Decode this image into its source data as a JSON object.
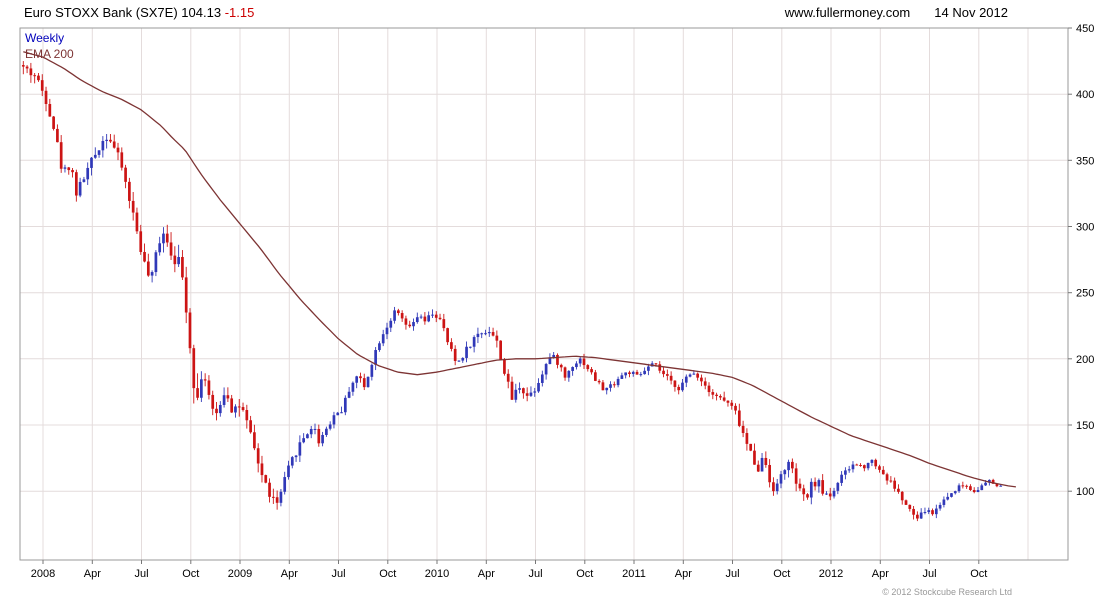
{
  "header": {
    "title": "Euro STOXX Bank (SX7E)",
    "price": "104.13",
    "change": "-1.15",
    "site": "www.fullermoney.com",
    "date": "14 Nov 2012"
  },
  "legend": {
    "timeframe": "Weekly",
    "indicator": "EMA 200"
  },
  "footer": {
    "copyright": "© 2012 Stockcube Research Ltd"
  },
  "colors": {
    "up": "#3038b8",
    "down": "#cc1414",
    "ema": "#7d3434",
    "grid": "#e4dcdc",
    "axis_border": "#9a9a9a",
    "tick": "#777777",
    "text": "#000000",
    "negative": "#cc0000",
    "weekly": "#0000bb",
    "copyright": "#999999"
  },
  "chart_data": {
    "type": "candlestick",
    "title": "Euro STOXX Bank (SX7E)",
    "timeframe": "Weekly",
    "overlay": "EMA 200",
    "last_close": 104.13,
    "change": -1.15,
    "x_range": [
      2007.9,
      2013.2
    ],
    "y_range": [
      48,
      450
    ],
    "y_ticks": [
      450,
      400,
      350,
      300,
      250,
      200,
      150,
      100
    ],
    "x_ticks": [
      {
        "t": 2008.0,
        "label": "2008"
      },
      {
        "t": 2008.25,
        "label": "Apr"
      },
      {
        "t": 2008.5,
        "label": "Jul"
      },
      {
        "t": 2008.75,
        "label": "Oct"
      },
      {
        "t": 2009.0,
        "label": "2009"
      },
      {
        "t": 2009.25,
        "label": "Apr"
      },
      {
        "t": 2009.5,
        "label": "Jul"
      },
      {
        "t": 2009.75,
        "label": "Oct"
      },
      {
        "t": 2010.0,
        "label": "2010"
      },
      {
        "t": 2010.25,
        "label": "Apr"
      },
      {
        "t": 2010.5,
        "label": "Jul"
      },
      {
        "t": 2010.75,
        "label": "Oct"
      },
      {
        "t": 2011.0,
        "label": "2011"
      },
      {
        "t": 2011.25,
        "label": "Apr"
      },
      {
        "t": 2011.5,
        "label": "Jul"
      },
      {
        "t": 2011.75,
        "label": "Oct"
      },
      {
        "t": 2012.0,
        "label": "2012"
      },
      {
        "t": 2012.25,
        "label": "Apr"
      },
      {
        "t": 2012.5,
        "label": "Jul"
      },
      {
        "t": 2012.75,
        "label": "Oct"
      }
    ],
    "price_anchors": [
      [
        2007.9,
        420
      ],
      [
        2007.96,
        414
      ],
      [
        2008.02,
        395
      ],
      [
        2008.06,
        372
      ],
      [
        2008.1,
        340
      ],
      [
        2008.14,
        348
      ],
      [
        2008.17,
        325
      ],
      [
        2008.21,
        338
      ],
      [
        2008.25,
        350
      ],
      [
        2008.29,
        362
      ],
      [
        2008.33,
        370
      ],
      [
        2008.36,
        360
      ],
      [
        2008.4,
        345
      ],
      [
        2008.44,
        320
      ],
      [
        2008.48,
        295
      ],
      [
        2008.52,
        268
      ],
      [
        2008.55,
        258
      ],
      [
        2008.58,
        285
      ],
      [
        2008.61,
        298
      ],
      [
        2008.65,
        282
      ],
      [
        2008.69,
        272
      ],
      [
        2008.72,
        252
      ],
      [
        2008.75,
        205
      ],
      [
        2008.78,
        165
      ],
      [
        2008.81,
        195
      ],
      [
        2008.84,
        172
      ],
      [
        2008.87,
        152
      ],
      [
        2008.9,
        168
      ],
      [
        2008.93,
        178
      ],
      [
        2008.96,
        162
      ],
      [
        2009.0,
        165
      ],
      [
        2009.04,
        148
      ],
      [
        2009.08,
        128
      ],
      [
        2009.12,
        108
      ],
      [
        2009.16,
        95
      ],
      [
        2009.19,
        90
      ],
      [
        2009.22,
        105
      ],
      [
        2009.25,
        118
      ],
      [
        2009.29,
        132
      ],
      [
        2009.33,
        142
      ],
      [
        2009.37,
        150
      ],
      [
        2009.4,
        138
      ],
      [
        2009.44,
        148
      ],
      [
        2009.48,
        158
      ],
      [
        2009.52,
        162
      ],
      [
        2009.56,
        180
      ],
      [
        2009.6,
        188
      ],
      [
        2009.63,
        178
      ],
      [
        2009.67,
        198
      ],
      [
        2009.71,
        215
      ],
      [
        2009.75,
        226
      ],
      [
        2009.79,
        236
      ],
      [
        2009.82,
        230
      ],
      [
        2009.86,
        222
      ],
      [
        2009.9,
        232
      ],
      [
        2009.94,
        228
      ],
      [
        2009.98,
        235
      ],
      [
        2010.02,
        228
      ],
      [
        2010.06,
        210
      ],
      [
        2010.1,
        196
      ],
      [
        2010.14,
        205
      ],
      [
        2010.18,
        214
      ],
      [
        2010.22,
        220
      ],
      [
        2010.27,
        222
      ],
      [
        2010.31,
        210
      ],
      [
        2010.35,
        185
      ],
      [
        2010.38,
        170
      ],
      [
        2010.42,
        180
      ],
      [
        2010.46,
        172
      ],
      [
        2010.5,
        178
      ],
      [
        2010.54,
        192
      ],
      [
        2010.58,
        203
      ],
      [
        2010.62,
        196
      ],
      [
        2010.65,
        186
      ],
      [
        2010.69,
        196
      ],
      [
        2010.73,
        200
      ],
      [
        2010.77,
        192
      ],
      [
        2010.81,
        183
      ],
      [
        2010.85,
        176
      ],
      [
        2010.9,
        182
      ],
      [
        2010.94,
        188
      ],
      [
        2010.98,
        190
      ],
      [
        2011.02,
        186
      ],
      [
        2011.06,
        192
      ],
      [
        2011.1,
        196
      ],
      [
        2011.15,
        188
      ],
      [
        2011.19,
        182
      ],
      [
        2011.23,
        178
      ],
      [
        2011.27,
        186
      ],
      [
        2011.31,
        190
      ],
      [
        2011.35,
        182
      ],
      [
        2011.4,
        174
      ],
      [
        2011.44,
        170
      ],
      [
        2011.48,
        166
      ],
      [
        2011.52,
        158
      ],
      [
        2011.56,
        140
      ],
      [
        2011.6,
        126
      ],
      [
        2011.63,
        118
      ],
      [
        2011.66,
        126
      ],
      [
        2011.69,
        108
      ],
      [
        2011.72,
        100
      ],
      [
        2011.75,
        114
      ],
      [
        2011.78,
        122
      ],
      [
        2011.81,
        112
      ],
      [
        2011.84,
        100
      ],
      [
        2011.87,
        93
      ],
      [
        2011.9,
        104
      ],
      [
        2011.93,
        108
      ],
      [
        2011.96,
        99
      ],
      [
        2012.0,
        97
      ],
      [
        2012.04,
        108
      ],
      [
        2012.08,
        115
      ],
      [
        2012.12,
        121
      ],
      [
        2012.16,
        118
      ],
      [
        2012.2,
        124
      ],
      [
        2012.24,
        118
      ],
      [
        2012.28,
        110
      ],
      [
        2012.32,
        104
      ],
      [
        2012.36,
        94
      ],
      [
        2012.4,
        85
      ],
      [
        2012.44,
        79
      ],
      [
        2012.48,
        86
      ],
      [
        2012.52,
        83
      ],
      [
        2012.56,
        92
      ],
      [
        2012.6,
        97
      ],
      [
        2012.64,
        103
      ],
      [
        2012.68,
        105
      ],
      [
        2012.72,
        100
      ],
      [
        2012.76,
        103
      ],
      [
        2012.8,
        108
      ],
      [
        2012.84,
        104
      ],
      [
        2012.87,
        104.13
      ]
    ],
    "ema_anchors": [
      [
        2007.9,
        432
      ],
      [
        2008.0,
        428
      ],
      [
        2008.1,
        420
      ],
      [
        2008.2,
        410
      ],
      [
        2008.3,
        402
      ],
      [
        2008.4,
        396
      ],
      [
        2008.5,
        388
      ],
      [
        2008.6,
        376
      ],
      [
        2008.65,
        368
      ],
      [
        2008.72,
        358
      ],
      [
        2008.8,
        340
      ],
      [
        2008.9,
        320
      ],
      [
        2009.0,
        302
      ],
      [
        2009.1,
        284
      ],
      [
        2009.2,
        264
      ],
      [
        2009.3,
        246
      ],
      [
        2009.4,
        230
      ],
      [
        2009.5,
        215
      ],
      [
        2009.6,
        203
      ],
      [
        2009.7,
        195
      ],
      [
        2009.8,
        190
      ],
      [
        2009.9,
        188
      ],
      [
        2010.0,
        190
      ],
      [
        2010.1,
        193
      ],
      [
        2010.2,
        196
      ],
      [
        2010.3,
        199
      ],
      [
        2010.4,
        200
      ],
      [
        2010.5,
        200
      ],
      [
        2010.6,
        201
      ],
      [
        2010.7,
        202
      ],
      [
        2010.8,
        201
      ],
      [
        2010.9,
        199
      ],
      [
        2011.0,
        197
      ],
      [
        2011.1,
        195
      ],
      [
        2011.2,
        193
      ],
      [
        2011.3,
        191
      ],
      [
        2011.4,
        189
      ],
      [
        2011.5,
        186
      ],
      [
        2011.6,
        180
      ],
      [
        2011.7,
        172
      ],
      [
        2011.8,
        164
      ],
      [
        2011.9,
        156
      ],
      [
        2012.0,
        149
      ],
      [
        2012.1,
        142
      ],
      [
        2012.2,
        137
      ],
      [
        2012.3,
        132
      ],
      [
        2012.4,
        127
      ],
      [
        2012.5,
        121
      ],
      [
        2012.6,
        116
      ],
      [
        2012.7,
        111
      ],
      [
        2012.8,
        107
      ],
      [
        2012.9,
        104
      ],
      [
        2012.95,
        103
      ]
    ],
    "volatility_anchors": [
      [
        2007.9,
        9
      ],
      [
        2008.3,
        8
      ],
      [
        2008.6,
        10
      ],
      [
        2008.75,
        16
      ],
      [
        2008.9,
        12
      ],
      [
        2009.1,
        9
      ],
      [
        2009.2,
        8
      ],
      [
        2009.5,
        6
      ],
      [
        2009.8,
        5
      ],
      [
        2010.1,
        6
      ],
      [
        2010.37,
        8
      ],
      [
        2010.6,
        5
      ],
      [
        2011.0,
        4.5
      ],
      [
        2011.4,
        5
      ],
      [
        2011.6,
        8
      ],
      [
        2011.8,
        8
      ],
      [
        2012.0,
        6
      ],
      [
        2012.2,
        4.5
      ],
      [
        2012.45,
        5
      ],
      [
        2012.7,
        3.5
      ],
      [
        2012.87,
        2.5
      ]
    ]
  }
}
